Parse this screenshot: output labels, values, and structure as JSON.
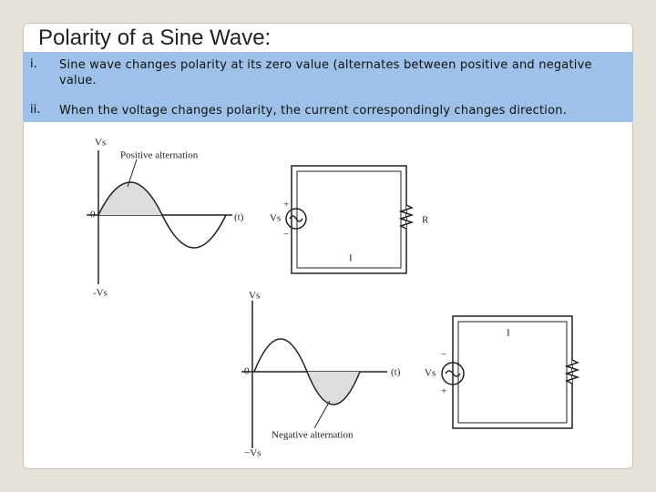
{
  "header": {
    "title": "Polarity of a Sine Wave:"
  },
  "list": [
    {
      "marker": "i.",
      "text": "Sine wave changes polarity at its zero value (alternates between positive and negative value."
    },
    {
      "marker": "ii.",
      "text": "When the voltage changes polarity, the current correspondingly changes direction."
    }
  ],
  "figures": {
    "positive_graph": {
      "y_top": "Vs",
      "annotation": "Positive alternation",
      "origin": "0",
      "x_axis": "(t)",
      "y_bottom": "-Vs"
    },
    "circuit_1": {
      "plus": "+",
      "source": "Vs",
      "minus": "−",
      "resistor": "R",
      "current": "I"
    },
    "negative_graph": {
      "y_top": "Vs",
      "origin": "0",
      "x_axis": "(t)",
      "annotation": "Negative alternation",
      "y_bottom": "−Vs"
    },
    "circuit_2": {
      "current": "I",
      "minus": "−",
      "source": "Vs",
      "plus": "+"
    }
  }
}
